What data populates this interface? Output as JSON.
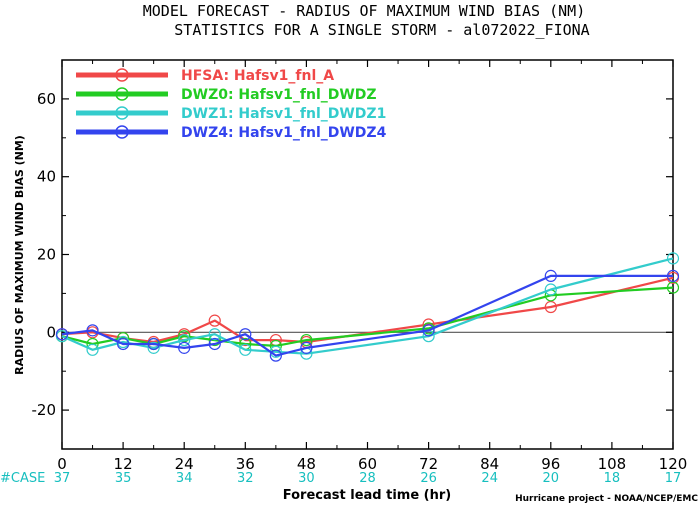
{
  "chart_data": {
    "type": "line",
    "title_line1": "MODEL FORECAST - RADIUS OF MAXIMUM WIND BIAS (NM)",
    "title_line2": "STATISTICS FOR A SINGLE STORM - al072022_FIONA",
    "ylabel": "RADIUS OF MAXIMUM WIND BIAS (NM)",
    "xlabel": "Forecast lead time (hr)",
    "credit": "Hurricane project - NOAA/NCEP/EMC",
    "case_label": "#CASE",
    "xlim": [
      0,
      120
    ],
    "ylim": [
      -30,
      70
    ],
    "xticks": [
      "0",
      "12",
      "24",
      "36",
      "48",
      "60",
      "72",
      "84",
      "96",
      "108",
      "120"
    ],
    "yticks": [
      "60",
      "40",
      "20",
      "0",
      "-20"
    ],
    "case_counts": [
      "37",
      "35",
      "34",
      "32",
      "30",
      "28",
      "26",
      "24",
      "20",
      "18",
      "17"
    ],
    "reference_line": 0,
    "grid": false,
    "legend_position": "top-left",
    "series": [
      {
        "name": "HFSA: Hafsv1_fnl_A",
        "color": "#f04848",
        "x": [
          0,
          6,
          12,
          18,
          24,
          30,
          36,
          42,
          48,
          72,
          96,
          120
        ],
        "y": [
          -0.5,
          0,
          -1.5,
          -2.5,
          -0.5,
          3,
          -2,
          -2,
          -2.5,
          2,
          6.5,
          14
        ]
      },
      {
        "name": "DWZ0: Hafsv1_fnl_DWDZ",
        "color": "#22cc22",
        "x": [
          0,
          6,
          12,
          18,
          24,
          30,
          36,
          42,
          48,
          72,
          96,
          120
        ],
        "y": [
          -1,
          -3,
          -1.5,
          -3,
          -1,
          -2,
          -3,
          -3.5,
          -2,
          1,
          9.5,
          11.5
        ]
      },
      {
        "name": "DWZ1: Hafsv1_fnl_DWDZ1",
        "color": "#33cccc",
        "x": [
          0,
          6,
          12,
          18,
          24,
          30,
          36,
          42,
          48,
          72,
          96,
          120
        ],
        "y": [
          -1,
          -4.5,
          -2.5,
          -4,
          -2,
          -0.5,
          -4.5,
          -5,
          -5.5,
          -1,
          11,
          19
        ]
      },
      {
        "name": "DWZ4: Hafsv1_fnl_DWDZ4",
        "color": "#3344ee",
        "x": [
          0,
          6,
          12,
          18,
          24,
          30,
          36,
          42,
          48,
          72,
          96,
          120
        ],
        "y": [
          -0.5,
          0.5,
          -3,
          -3,
          -4,
          -3,
          -0.5,
          -6,
          -4,
          0.5,
          14.5,
          14.5
        ]
      }
    ]
  }
}
